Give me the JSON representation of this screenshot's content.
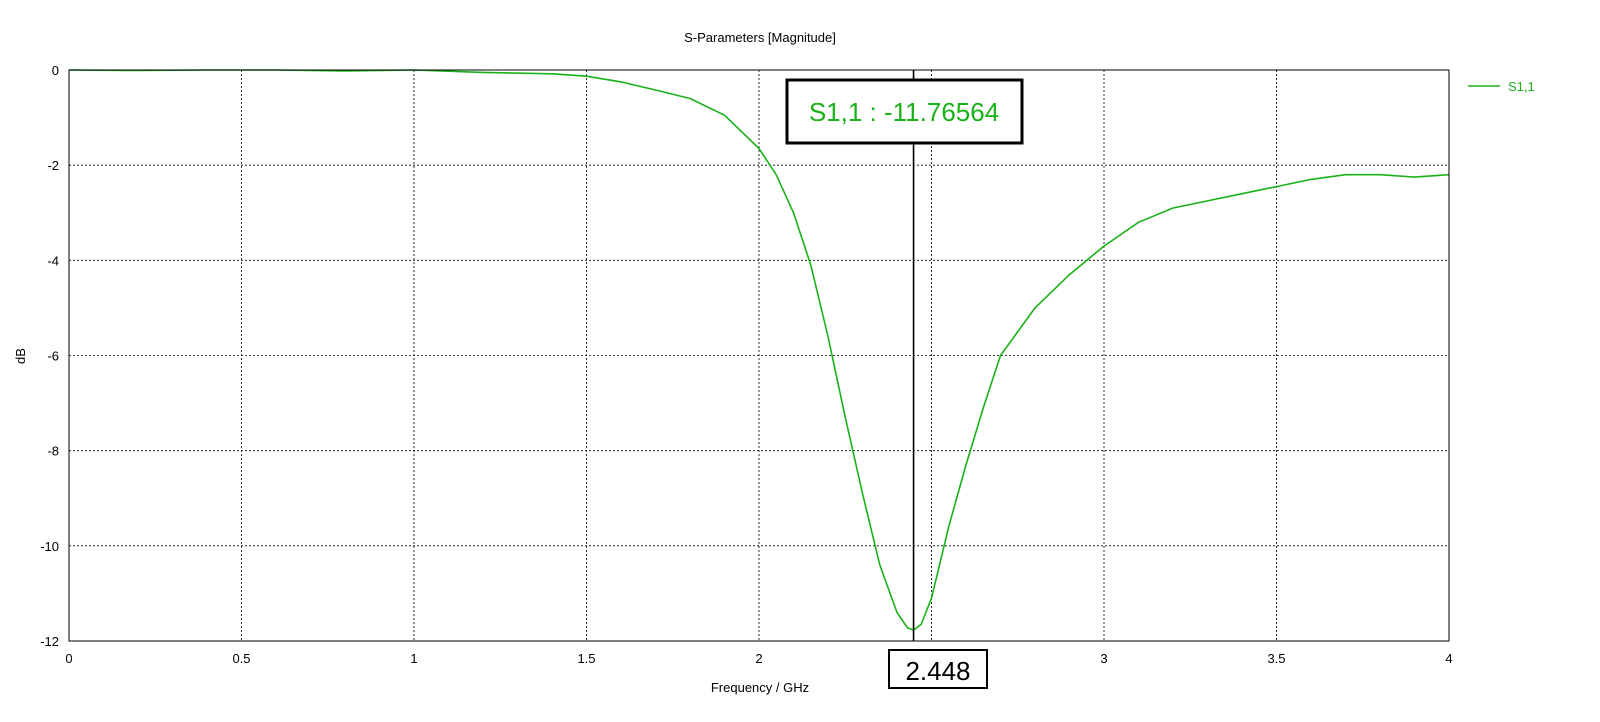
{
  "chart_data": {
    "type": "line",
    "title": "S-Parameters [Magnitude]",
    "xlabel": "Frequency / GHz",
    "ylabel": "dB",
    "xlim": [
      0,
      4
    ],
    "ylim": [
      -12,
      0
    ],
    "x_ticks": [
      0,
      0.5,
      1,
      1.5,
      2,
      2.5,
      3,
      3.5,
      4
    ],
    "x_tick_labels": [
      "0",
      "0.5",
      "1",
      "1.5",
      "2",
      "2.5",
      "3",
      "3.5",
      "4"
    ],
    "y_ticks": [
      0,
      -2,
      -4,
      -6,
      -8,
      -10,
      -12
    ],
    "y_tick_labels": [
      "0",
      "-2",
      "-4",
      "-6",
      "-8",
      "-10",
      "-12"
    ],
    "grid": true,
    "legend_position": "top-right",
    "series": [
      {
        "name": "S1,1",
        "color": "#19b219",
        "x": [
          0,
          0.2,
          0.4,
          0.6,
          0.8,
          1.0,
          1.2,
          1.4,
          1.5,
          1.6,
          1.7,
          1.8,
          1.9,
          2.0,
          2.05,
          2.1,
          2.15,
          2.2,
          2.25,
          2.3,
          2.35,
          2.4,
          2.43,
          2.448,
          2.47,
          2.5,
          2.55,
          2.6,
          2.65,
          2.7,
          2.8,
          2.9,
          3.0,
          3.1,
          3.2,
          3.3,
          3.4,
          3.5,
          3.6,
          3.7,
          3.8,
          3.9,
          4.0
        ],
        "values": [
          0,
          -0.01,
          0,
          0,
          -0.02,
          0,
          -0.05,
          -0.08,
          -0.13,
          -0.25,
          -0.42,
          -0.6,
          -0.95,
          -1.65,
          -2.2,
          -3.0,
          -4.1,
          -5.6,
          -7.3,
          -8.9,
          -10.4,
          -11.4,
          -11.72,
          -11.77,
          -11.65,
          -11.1,
          -9.6,
          -8.3,
          -7.1,
          -6.0,
          -5.0,
          -4.3,
          -3.7,
          -3.2,
          -2.9,
          -2.75,
          -2.6,
          -2.45,
          -2.3,
          -2.2,
          -2.2,
          -2.25,
          -2.2
        ]
      }
    ],
    "marker": {
      "x": 2.448,
      "value_label": "S1,1 : -11.76564",
      "x_label": "2.448"
    }
  }
}
